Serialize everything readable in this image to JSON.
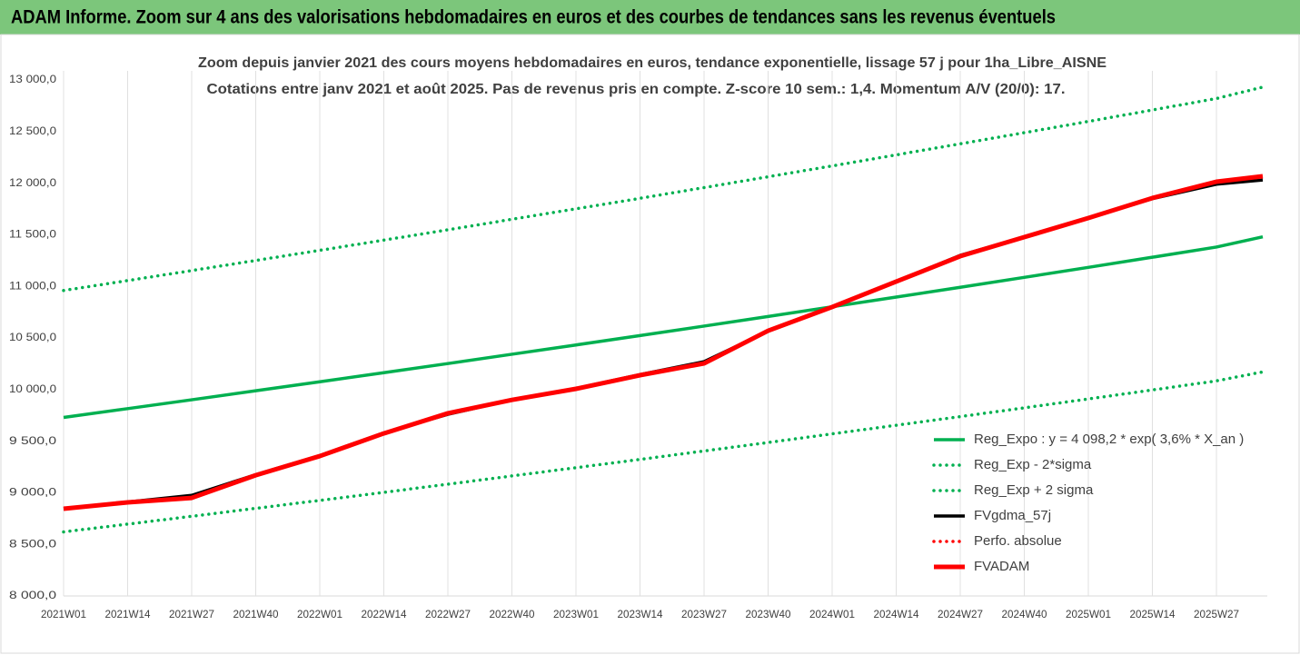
{
  "header": {
    "title": "ADAM Informe. Zoom sur 4 ans des valorisations hebdomadaires en euros et des courbes de tendances sans les revenus éventuels"
  },
  "chart_data": {
    "type": "line",
    "title": "Zoom depuis janvier 2021 des cours moyens hebdomadaires en euros, tendance exponentielle, lissage 57 j pour 1ha_Libre_AISNE",
    "subtitle": "Cotations entre janv 2021 et août 2025. Pas de revenus pris en compte. Z-score 10 sem.: 1,4. Momentum A/V (20/0): 17.",
    "categories": [
      "2021W01",
      "2021W14",
      "2021W27",
      "2021W40",
      "2022W01",
      "2022W14",
      "2022W27",
      "2022W40",
      "2023W01",
      "2023W14",
      "2023W27",
      "2023W40",
      "2024W01",
      "2024W14",
      "2024W27",
      "2024W40",
      "2025W01",
      "2025W14",
      "2025W27",
      null
    ],
    "series": [
      {
        "name": "Reg_Expo : y = 4 098,2 * exp( 3,6% *  X_an )",
        "color": "#00b050",
        "line_style": "solid",
        "values": [
          9730,
          9815,
          9901,
          9988,
          10075,
          10163,
          10252,
          10342,
          10432,
          10523,
          10615,
          10708,
          10802,
          10896,
          10991,
          11087,
          11184,
          11282,
          11381,
          11480
        ]
      },
      {
        "name": "Reg_Exp - 2*sigma",
        "color": "#00b050",
        "line_style": "dotted",
        "values": [
          8621,
          8696,
          8772,
          8849,
          8926,
          9004,
          9083,
          9163,
          9243,
          9323,
          9405,
          9487,
          9571,
          9654,
          9738,
          9823,
          9909,
          9996,
          10084,
          10171
        ]
      },
      {
        "name": "Reg_Exp + 2 sigma",
        "color": "#00b050",
        "line_style": "dotted",
        "values": [
          10960,
          11056,
          11153,
          11251,
          11349,
          11448,
          11548,
          11650,
          11751,
          11853,
          11957,
          12062,
          12167,
          12274,
          12381,
          12489,
          12598,
          12709,
          12820,
          12931
        ]
      },
      {
        "name": "FVgdma_57j",
        "color": "#000000",
        "line_style": "solid",
        "values": [
          8845,
          8910,
          8975,
          9175,
          9360,
          9580,
          9760,
          9900,
          10010,
          10145,
          10270,
          10565,
          10800,
          11046,
          11300,
          11477,
          11662,
          11850,
          11990,
          12030
        ]
      },
      {
        "name": "Perfo. absolue",
        "color": "#ff0000",
        "line_style": "dotted",
        "values": [
          null,
          null,
          null,
          null,
          null,
          null,
          null,
          null,
          null,
          null,
          null,
          null,
          null,
          null,
          null,
          null,
          null,
          null,
          null,
          null
        ]
      },
      {
        "name": "FVADAM",
        "color": "#ff0000",
        "line_style": "thick",
        "values": [
          8845,
          8907,
          8950,
          9170,
          9355,
          9575,
          9770,
          9900,
          10007,
          10139,
          10253,
          10570,
          10800,
          11046,
          11292,
          11477,
          11662,
          11856,
          12014,
          12067
        ]
      }
    ],
    "ylim": [
      8000,
      13000
    ],
    "yticks": [
      {
        "value": 8000,
        "label": "8 000,0"
      },
      {
        "value": 8500,
        "label": "8 500,0"
      },
      {
        "value": 9000,
        "label": "9 000,0"
      },
      {
        "value": 9500,
        "label": "9 500,0"
      },
      {
        "value": 10000,
        "label": "10 000,0"
      },
      {
        "value": 10500,
        "label": "10 500,0"
      },
      {
        "value": 11000,
        "label": "11 000,0"
      },
      {
        "value": 11500,
        "label": "11 500,0"
      },
      {
        "value": 12000,
        "label": "12 000,0"
      },
      {
        "value": 12500,
        "label": "12 500,0"
      },
      {
        "value": 13000,
        "label": "13 000,0"
      }
    ],
    "xgrid": true,
    "legend": "bottom-right"
  }
}
